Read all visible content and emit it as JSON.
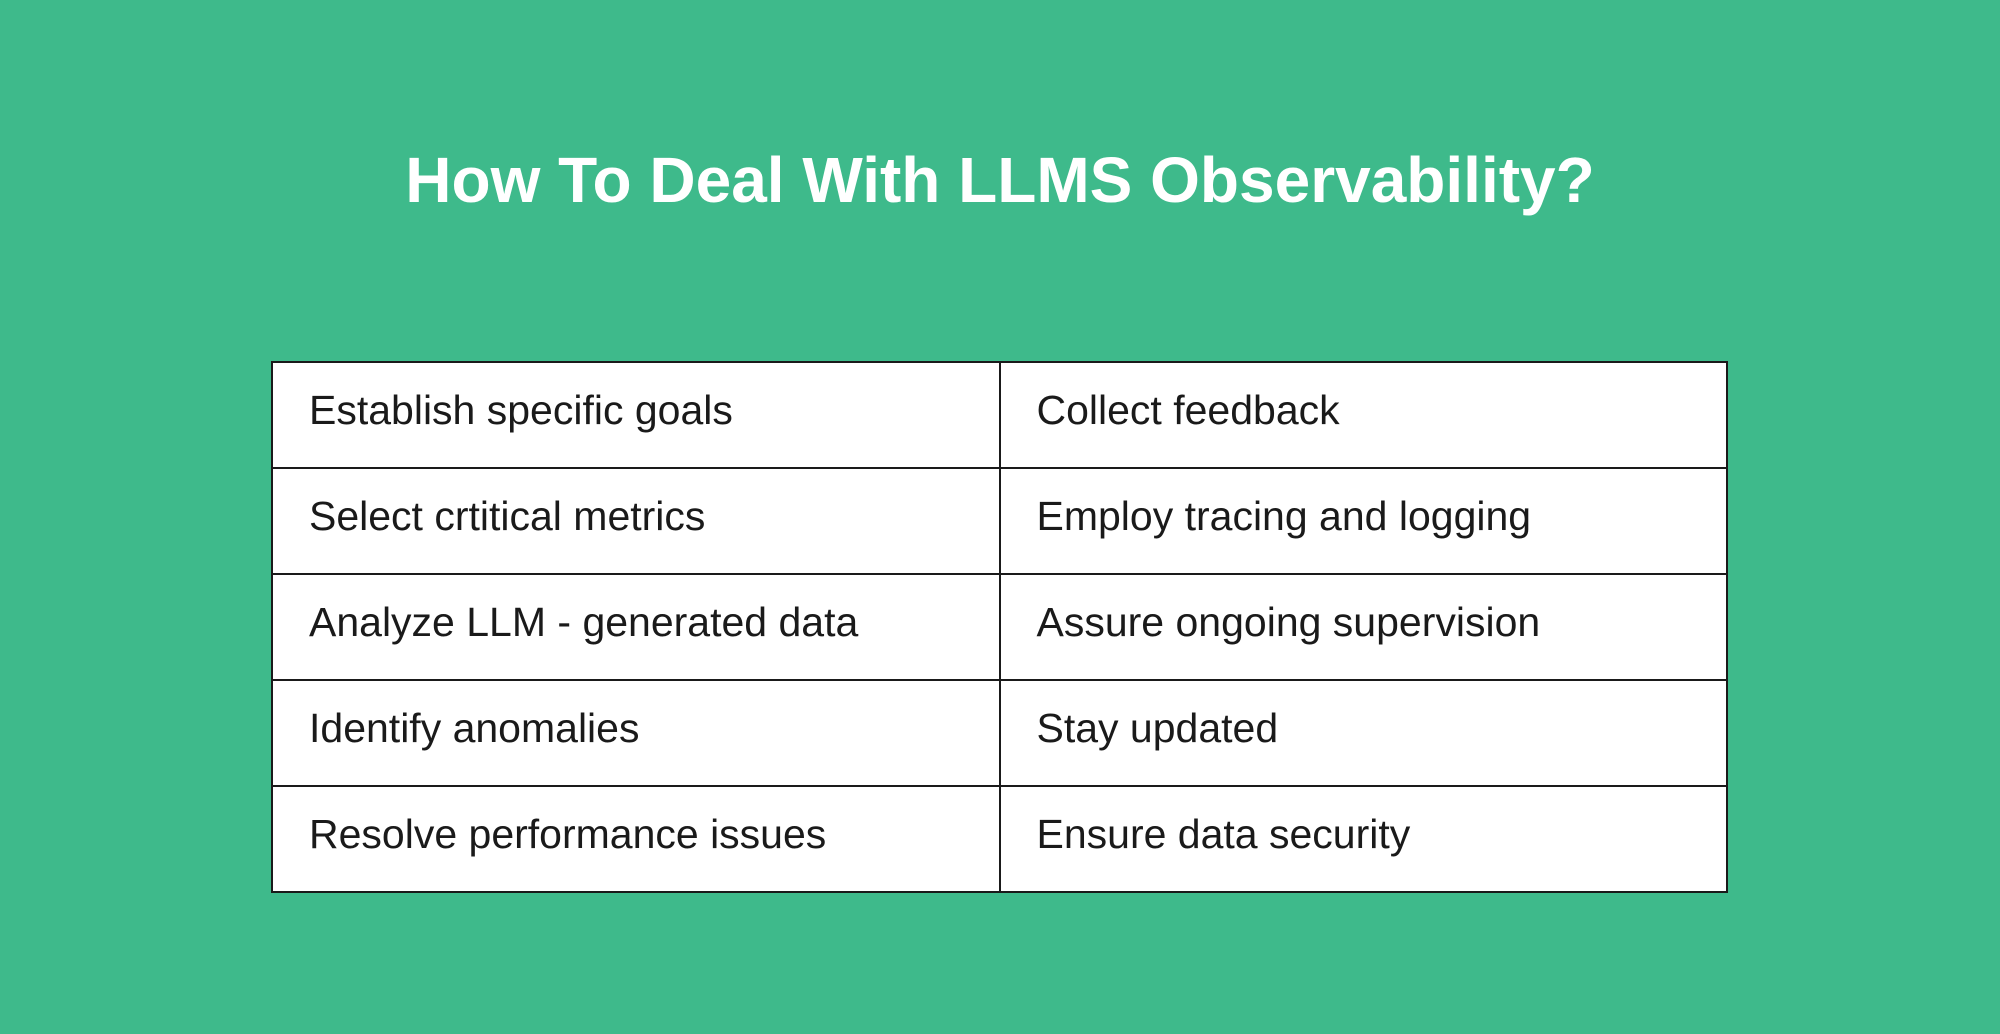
{
  "title": "How To Deal With LLMS Observability?",
  "colors": {
    "background": "#3eba8b",
    "table_background": "#ffffff",
    "text": "#1a1a1a"
  },
  "rows": [
    [
      "Establish specific goals",
      "Collect feedback"
    ],
    [
      "Select crtitical metrics",
      "Employ tracing and logging"
    ],
    [
      "Analyze LLM - generated data",
      "Assure ongoing supervision"
    ],
    [
      "Identify anomalies",
      "Stay updated"
    ],
    [
      "Resolve performance issues",
      "Ensure data security"
    ]
  ]
}
